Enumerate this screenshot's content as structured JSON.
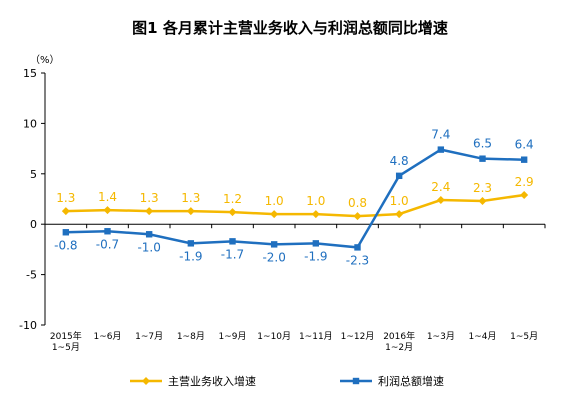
{
  "chart_data": {
    "type": "line",
    "title": "图1  各月累计主营业务收入与利润总额同比增速",
    "yunit": "（%）",
    "ylim": [
      -10,
      15
    ],
    "yticks": [
      "15",
      "10",
      "5",
      "0",
      "-5",
      "-10"
    ],
    "categories": [
      [
        "2015年",
        "1~5月"
      ],
      [
        "1~6月"
      ],
      [
        "1~7月"
      ],
      [
        "1~8月"
      ],
      [
        "1~9月"
      ],
      [
        "1~10月"
      ],
      [
        "1~11月"
      ],
      [
        "1~12月"
      ],
      [
        "2016年",
        "1~2月"
      ],
      [
        "1~3月"
      ],
      [
        "1~4月"
      ],
      [
        "1~5月"
      ]
    ],
    "series": [
      {
        "name": "主营业务收入增速",
        "color": "#f5b800",
        "marker": "diamond",
        "values": [
          1.3,
          1.4,
          1.3,
          1.3,
          1.2,
          1.0,
          1.0,
          0.8,
          1.0,
          2.4,
          2.3,
          2.9
        ],
        "labels": [
          "1.3",
          "1.4",
          "1.3",
          "1.3",
          "1.2",
          "1.0",
          "1.0",
          "0.8",
          "1.0",
          "2.4",
          "2.3",
          "2.9"
        ]
      },
      {
        "name": "利润总额增速",
        "color": "#1f6fbf",
        "marker": "square",
        "values": [
          -0.8,
          -0.7,
          -1.0,
          -1.9,
          -1.7,
          -2.0,
          -1.9,
          -2.3,
          4.8,
          7.4,
          6.5,
          6.4
        ],
        "labels": [
          "-0.8",
          "-0.7",
          "-1.0",
          "-1.9",
          "-1.7",
          "-2.0",
          "-1.9",
          "-2.3",
          "4.8",
          "7.4",
          "6.5",
          "6.4"
        ]
      }
    ],
    "legend_position": "bottom",
    "grid": false
  }
}
